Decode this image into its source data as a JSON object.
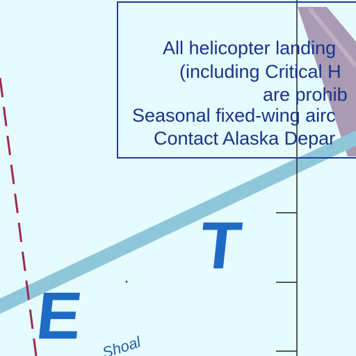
{
  "map": {
    "colors": {
      "water": "#e6fbfd",
      "channel_band": "#8fc7da",
      "boundary_dash": "#9a2a5a",
      "notice_text": "#173488",
      "notice_border": "#1c3d8a",
      "letter_color": "#1e6bc4",
      "land_strip": "#9f88a6"
    },
    "notice": {
      "lines": [
        "All helicopter landing",
        "(including Critical H",
        "are prohib",
        "Seasonal fixed-wing airc",
        "Contact Alaska Depar"
      ]
    },
    "letters": [
      "E",
      "T"
    ],
    "feature_label": "Shoal"
  }
}
